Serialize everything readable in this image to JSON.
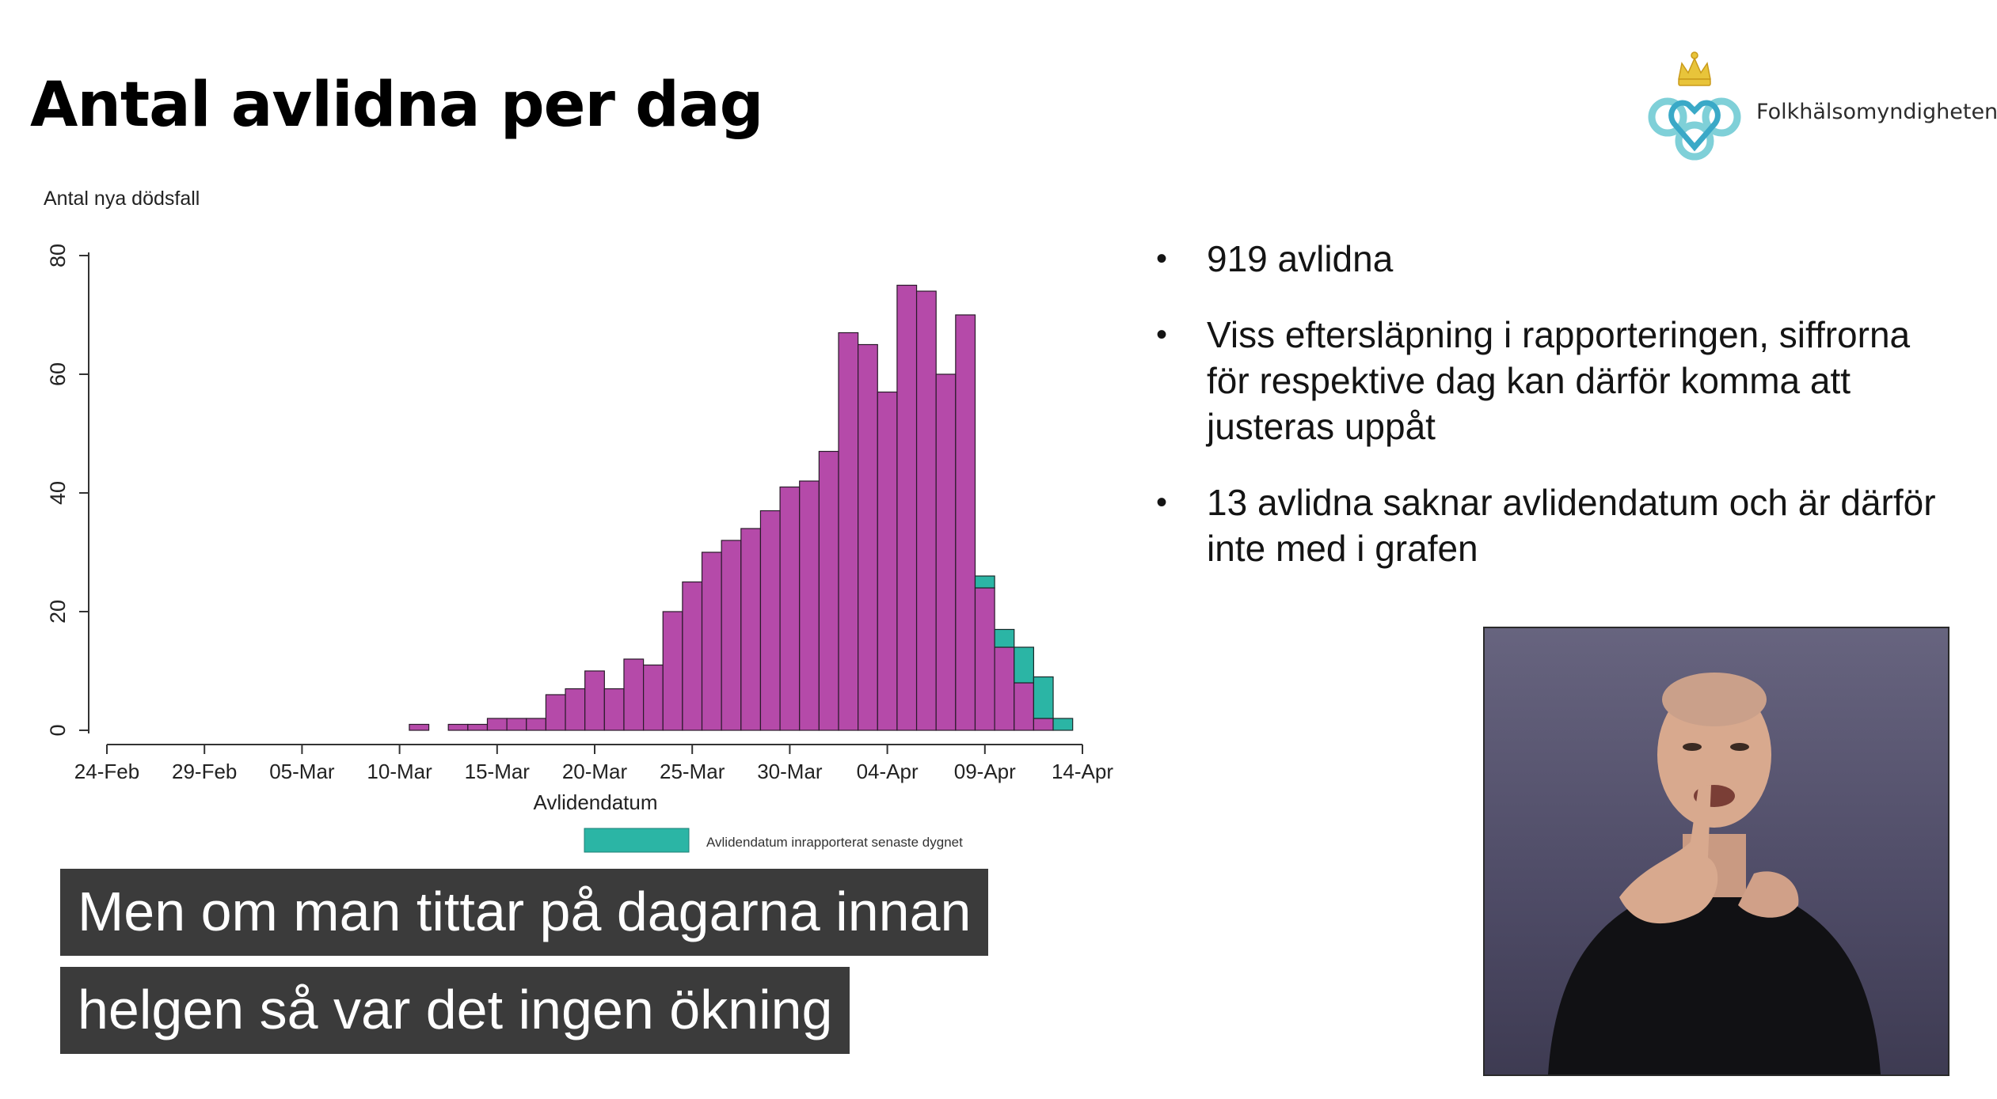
{
  "slide": {
    "title": "Antal avlidna per dag",
    "logo_text": "Folkhälsomyndigheten"
  },
  "chart_data": {
    "type": "bar",
    "ylabel": "Antal nya dödsfall",
    "xlabel": "Avlidendatum",
    "ylim": [
      0,
      80
    ],
    "yticks": [
      0,
      20,
      40,
      60,
      80
    ],
    "xticks": [
      "24-Feb",
      "29-Feb",
      "05-Mar",
      "10-Mar",
      "15-Mar",
      "20-Mar",
      "25-Mar",
      "30-Mar",
      "04-Apr",
      "09-Apr",
      "14-Apr"
    ],
    "x": [
      "11-Mar",
      "12-Mar",
      "13-Mar",
      "14-Mar",
      "15-Mar",
      "16-Mar",
      "17-Mar",
      "18-Mar",
      "19-Mar",
      "20-Mar",
      "21-Mar",
      "22-Mar",
      "23-Mar",
      "24-Mar",
      "25-Mar",
      "26-Mar",
      "27-Mar",
      "28-Mar",
      "29-Mar",
      "30-Mar",
      "31-Mar",
      "01-Apr",
      "02-Apr",
      "03-Apr",
      "04-Apr",
      "05-Apr",
      "06-Apr",
      "07-Apr",
      "08-Apr",
      "09-Apr",
      "10-Apr",
      "11-Apr",
      "12-Apr",
      "13-Apr"
    ],
    "series": [
      {
        "color": "#b54aa9",
        "values": [
          1,
          0,
          1,
          1,
          2,
          2,
          2,
          6,
          7,
          10,
          7,
          12,
          11,
          20,
          25,
          30,
          32,
          34,
          37,
          41,
          42,
          47,
          67,
          65,
          57,
          75,
          74,
          60,
          70,
          24,
          14,
          8,
          2,
          0
        ]
      },
      {
        "name": "Avlidendatum inrapporterat senaste dygnet",
        "color": "#2bb5a5",
        "values": [
          0,
          0,
          0,
          0,
          0,
          0,
          0,
          0,
          0,
          0,
          0,
          0,
          0,
          0,
          0,
          0,
          0,
          0,
          0,
          0,
          0,
          0,
          0,
          0,
          0,
          0,
          0,
          0,
          0,
          2,
          3,
          6,
          7,
          2
        ]
      }
    ],
    "grid": false,
    "legend": "bottom"
  },
  "bullets": [
    "919 avlidna",
    "Viss eftersläpning i rapporteringen, siffrorna för respektive dag kan därför komma att justeras uppåt",
    "13 avlidna saknar avlidendatum och är därför inte med i grafen"
  ],
  "captions": [
    "Men om man tittar på dagarna innan",
    "helgen så var det ingen ökning"
  ]
}
